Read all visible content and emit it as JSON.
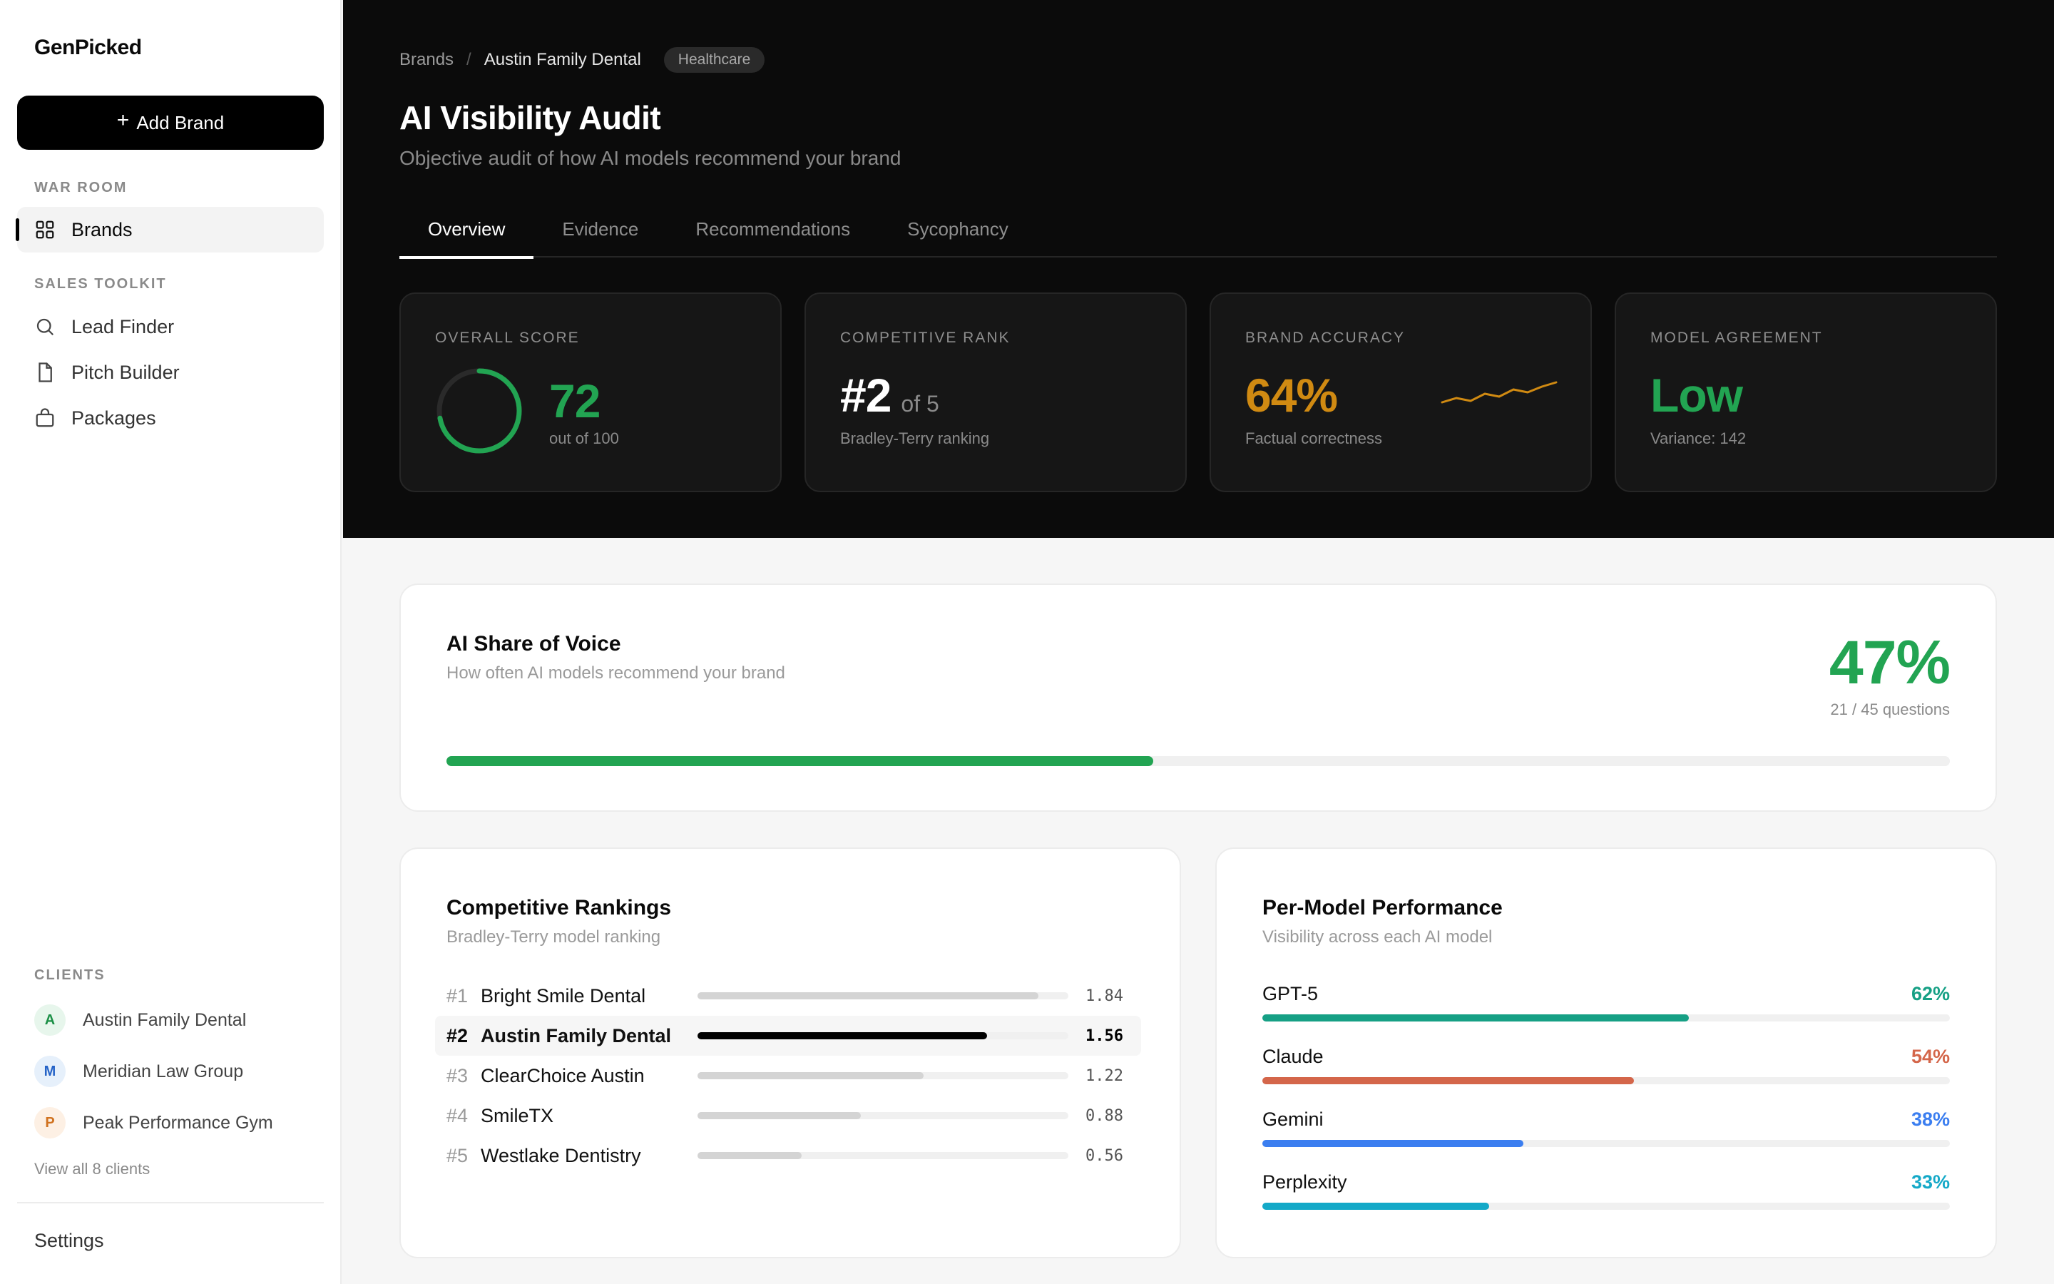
{
  "app": {
    "name": "GenPicked"
  },
  "sidebar": {
    "add_brand_label": "Add Brand",
    "war_room_label": "WAR ROOM",
    "war_room_items": [
      {
        "label": "Brands",
        "icon": "grid-icon",
        "active": true
      }
    ],
    "sales_toolkit_label": "SALES TOOLKIT",
    "sales_items": [
      {
        "label": "Lead Finder",
        "icon": "search-icon"
      },
      {
        "label": "Pitch Builder",
        "icon": "file-icon"
      },
      {
        "label": "Packages",
        "icon": "shopping-bag-icon"
      }
    ],
    "clients_label": "CLIENTS",
    "clients": [
      {
        "initial": "A",
        "name": "Austin Family Dental",
        "bg": "#e7f6ec",
        "fg": "#1a8f45"
      },
      {
        "initial": "M",
        "name": "Meridian Law Group",
        "bg": "#e6f0fb",
        "fg": "#2563c7"
      },
      {
        "initial": "P",
        "name": "Peak Performance Gym",
        "bg": "#fdf0e4",
        "fg": "#d0721f"
      }
    ],
    "view_all": "View all 8 clients",
    "settings": "Settings"
  },
  "header": {
    "breadcrumb_root": "Brands",
    "breadcrumb_sep": "/",
    "breadcrumb_current": "Austin Family Dental",
    "category_tag": "Healthcare",
    "title": "AI Visibility Audit",
    "subtitle": "Objective audit of how AI models recommend your brand",
    "tabs": [
      {
        "label": "Overview",
        "active": true
      },
      {
        "label": "Evidence"
      },
      {
        "label": "Recommendations"
      },
      {
        "label": "Sycophancy"
      }
    ]
  },
  "metrics": {
    "overall": {
      "label": "OVERALL SCORE",
      "value": "72",
      "sub": "out of 100",
      "score_fraction": 0.72,
      "color": "#22a452"
    },
    "rank": {
      "label": "COMPETITIVE RANK",
      "value": "#2",
      "of": "of 5",
      "sub": "Bradley-Terry ranking"
    },
    "accuracy": {
      "label": "BRAND ACCURACY",
      "value": "64%",
      "sub": "Factual correctness",
      "color": "#d08a12"
    },
    "agreement": {
      "label": "MODEL AGREEMENT",
      "value": "Low",
      "sub": "Variance: 142",
      "color": "#22a452"
    }
  },
  "share_of_voice": {
    "title": "AI Share of Voice",
    "subtitle": "How often AI models recommend your brand",
    "value": "47%",
    "detail": "21 / 45 questions",
    "fraction": 0.47,
    "color": "#22a452"
  },
  "rankings": {
    "title": "Competitive Rankings",
    "subtitle": "Bradley-Terry model ranking",
    "max_value": 1.84,
    "rows": [
      {
        "rank": "#1",
        "name": "Bright Smile Dental",
        "value": "1.84",
        "score": 1.84,
        "highlight": false
      },
      {
        "rank": "#2",
        "name": "Austin Family Dental",
        "value": "1.56",
        "score": 1.56,
        "highlight": true
      },
      {
        "rank": "#3",
        "name": "ClearChoice Austin",
        "value": "1.22",
        "score": 1.22,
        "highlight": false
      },
      {
        "rank": "#4",
        "name": "SmileTX",
        "value": "0.88",
        "score": 0.88,
        "highlight": false
      },
      {
        "rank": "#5",
        "name": "Westlake Dentistry",
        "value": "0.56",
        "score": 0.56,
        "highlight": false
      }
    ]
  },
  "models": {
    "title": "Per-Model Performance",
    "subtitle": "Visibility across each AI model",
    "rows": [
      {
        "name": "GPT-5",
        "value": "62%",
        "fraction": 0.62,
        "color": "#16a085"
      },
      {
        "name": "Claude",
        "value": "54%",
        "fraction": 0.54,
        "color": "#d4664a"
      },
      {
        "name": "Gemini",
        "value": "38%",
        "fraction": 0.38,
        "color": "#3b7ef0"
      },
      {
        "name": "Perplexity",
        "value": "33%",
        "fraction": 0.33,
        "color": "#14a9c8"
      }
    ]
  }
}
